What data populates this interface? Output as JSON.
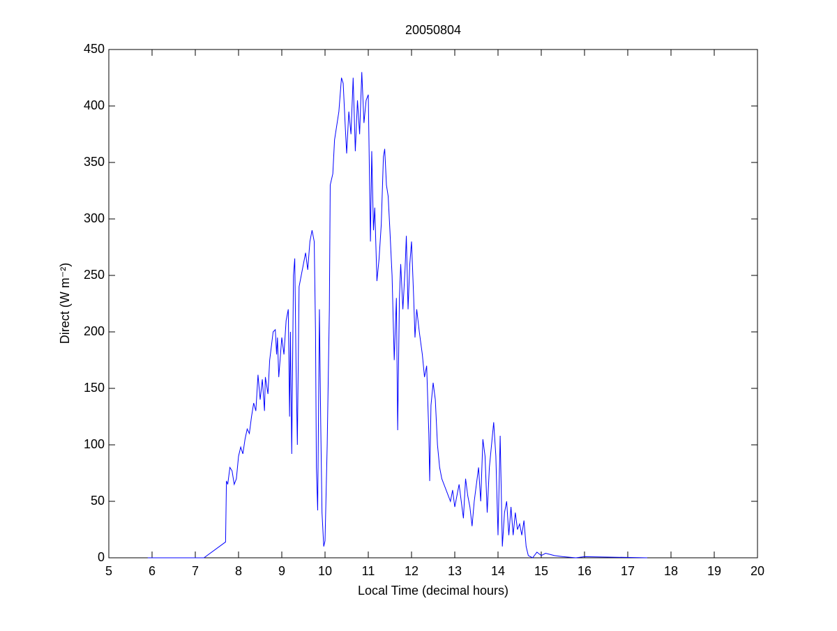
{
  "chart_data": {
    "type": "line",
    "title": "20050804",
    "xlabel": "Local Time (decimal hours)",
    "ylabel": "Direct (W m⁻²)",
    "color": "#0000ff",
    "x": [
      5.9,
      7.2,
      7.7,
      7.72,
      7.75,
      7.8,
      7.85,
      7.9,
      7.95,
      8.0,
      8.05,
      8.1,
      8.15,
      8.2,
      8.25,
      8.3,
      8.35,
      8.4,
      8.45,
      8.5,
      8.55,
      8.6,
      8.62,
      8.68,
      8.72,
      8.8,
      8.85,
      8.88,
      8.9,
      8.93,
      8.96,
      9.0,
      9.05,
      9.1,
      9.15,
      9.18,
      9.2,
      9.23,
      9.27,
      9.3,
      9.33,
      9.36,
      9.4,
      9.45,
      9.5,
      9.55,
      9.6,
      9.65,
      9.7,
      9.75,
      9.78,
      9.8,
      9.83,
      9.87,
      9.9,
      9.93,
      9.97,
      10.0,
      10.05,
      10.1,
      10.12,
      10.18,
      10.22,
      10.28,
      10.32,
      10.38,
      10.42,
      10.47,
      10.5,
      10.55,
      10.6,
      10.65,
      10.7,
      10.75,
      10.8,
      10.85,
      10.9,
      10.95,
      11.0,
      11.05,
      11.08,
      11.12,
      11.15,
      11.2,
      11.25,
      11.3,
      11.35,
      11.38,
      11.42,
      11.46,
      11.5,
      11.55,
      11.6,
      11.65,
      11.68,
      11.72,
      11.75,
      11.8,
      11.85,
      11.88,
      11.92,
      11.96,
      12.0,
      12.05,
      12.08,
      12.12,
      12.18,
      12.25,
      12.3,
      12.35,
      12.4,
      12.42,
      12.45,
      12.5,
      12.55,
      12.6,
      12.65,
      12.7,
      12.8,
      12.85,
      12.9,
      12.95,
      13.0,
      13.05,
      13.1,
      13.15,
      13.2,
      13.25,
      13.3,
      13.35,
      13.4,
      13.45,
      13.5,
      13.55,
      13.6,
      13.65,
      13.7,
      13.75,
      13.8,
      13.85,
      13.9,
      13.95,
      14.0,
      14.05,
      14.1,
      14.15,
      14.2,
      14.25,
      14.3,
      14.35,
      14.4,
      14.45,
      14.5,
      14.55,
      14.6,
      14.65,
      14.7,
      14.8,
      14.9,
      15.0,
      15.1,
      15.2,
      15.3,
      15.5,
      15.8,
      16.0,
      17.45
    ],
    "values": [
      0,
      0,
      14,
      68,
      65,
      80,
      77,
      65,
      70,
      90,
      98,
      92,
      105,
      114,
      110,
      125,
      137,
      130,
      162,
      140,
      158,
      130,
      160,
      145,
      175,
      200,
      202,
      180,
      195,
      160,
      175,
      195,
      180,
      210,
      220,
      125,
      200,
      92,
      250,
      265,
      170,
      100,
      240,
      250,
      260,
      270,
      255,
      280,
      290,
      280,
      200,
      80,
      42,
      220,
      120,
      40,
      10,
      15,
      100,
      220,
      330,
      340,
      370,
      385,
      395,
      425,
      420,
      380,
      358,
      395,
      375,
      425,
      360,
      405,
      375,
      430,
      385,
      405,
      410,
      280,
      360,
      290,
      310,
      245,
      265,
      295,
      355,
      362,
      330,
      320,
      290,
      250,
      175,
      230,
      113,
      230,
      260,
      220,
      255,
      285,
      220,
      260,
      280,
      230,
      195,
      220,
      200,
      180,
      160,
      170,
      110,
      68,
      135,
      155,
      140,
      100,
      80,
      70,
      60,
      55,
      50,
      60,
      45,
      55,
      65,
      50,
      35,
      70,
      55,
      45,
      28,
      50,
      65,
      80,
      50,
      105,
      90,
      40,
      80,
      100,
      120,
      90,
      20,
      108,
      10,
      40,
      50,
      20,
      45,
      20,
      40,
      25,
      30,
      20,
      33,
      10,
      2,
      0,
      5,
      2,
      4,
      3,
      2,
      1,
      0,
      1,
      0
    ],
    "xlim": [
      5,
      20
    ],
    "xticks": [
      5,
      6,
      7,
      8,
      9,
      10,
      11,
      12,
      13,
      14,
      15,
      16,
      17,
      18,
      19,
      20
    ],
    "ylim": [
      0,
      450
    ],
    "yticks": [
      0,
      50,
      100,
      150,
      200,
      250,
      300,
      350,
      400,
      450
    ]
  }
}
